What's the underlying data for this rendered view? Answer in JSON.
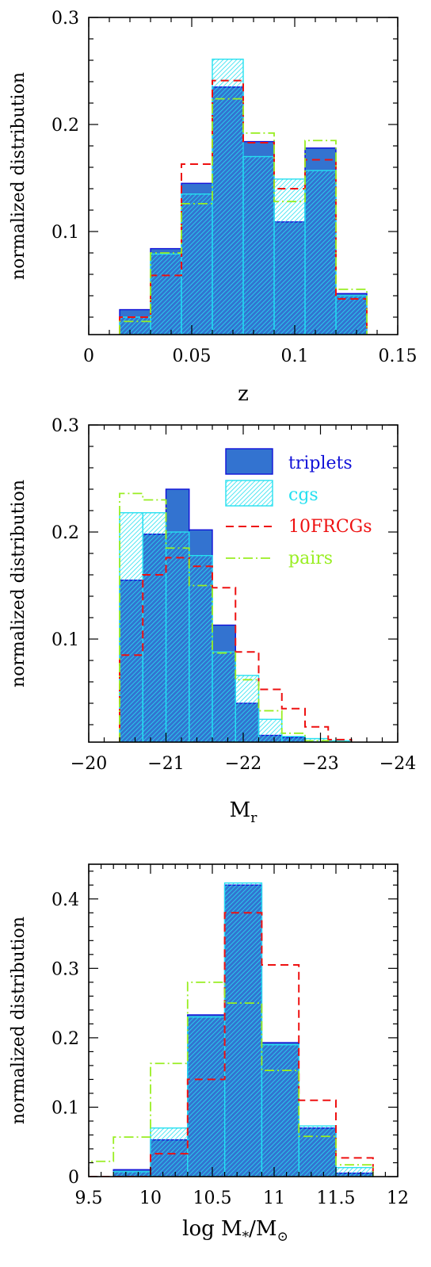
{
  "figure": {
    "colors": {
      "triplets_fill": "#3373d0",
      "triplets_edge": "#1010d8",
      "cgs": "#26e0f0",
      "frcgs": "#ee1111",
      "pairs": "#99ee22",
      "axis": "#000000",
      "background": "#ffffff"
    },
    "legend_panel": 1
  },
  "chart_data": [
    {
      "type": "bar",
      "xlabel": "z",
      "ylabel": "normalized distribution",
      "xlim": [
        0,
        0.15
      ],
      "ylim": [
        0.0037,
        0.3
      ],
      "xticks": [
        0,
        0.05,
        0.1,
        0.15
      ],
      "xtick_labels": [
        "0",
        "0.05",
        "0.1",
        "0.15"
      ],
      "yticks": [
        0.1,
        0.2,
        0.3
      ],
      "ytick_labels": [
        "0.1",
        "0.2",
        "0.3"
      ],
      "bin_edges": [
        0.015,
        0.03,
        0.045,
        0.06,
        0.075,
        0.09,
        0.105,
        0.12,
        0.135
      ],
      "series": [
        {
          "key": "triplets",
          "values": [
            0.027,
            0.084,
            0.145,
            0.235,
            0.184,
            0.109,
            0.178,
            0.042
          ]
        },
        {
          "key": "cgs",
          "values": [
            0.02,
            0.079,
            0.135,
            0.261,
            0.17,
            0.149,
            0.157,
            0.04
          ]
        },
        {
          "key": "frcgs",
          "values": [
            0.02,
            0.059,
            0.163,
            0.241,
            0.183,
            0.14,
            0.167,
            0.037
          ]
        },
        {
          "key": "pairs",
          "values": [
            0.016,
            0.08,
            0.126,
            0.224,
            0.192,
            0.128,
            0.185,
            0.046
          ]
        }
      ]
    },
    {
      "type": "bar",
      "xlabel": "M",
      "xlabel_sub": "r",
      "ylabel": "normalized distribution",
      "xlim": [
        -20,
        -24
      ],
      "ylim": [
        0.0037,
        0.3
      ],
      "xticks": [
        -20,
        -21,
        -22,
        -23,
        -24
      ],
      "xtick_labels": [
        "−20",
        "−21",
        "−22",
        "−23",
        "−24"
      ],
      "yticks": [
        0.1,
        0.2,
        0.3
      ],
      "ytick_labels": [
        "0.1",
        "0.2",
        "0.3"
      ],
      "bin_edges": [
        -20.4,
        -20.7,
        -21.0,
        -21.3,
        -21.6,
        -21.9,
        -22.2,
        -22.5,
        -22.8,
        -23.1,
        -23.4
      ],
      "series": [
        {
          "key": "triplets",
          "values": [
            0.155,
            0.198,
            0.24,
            0.202,
            0.113,
            0.04,
            0.01,
            0.008,
            0.004,
            0.001
          ]
        },
        {
          "key": "cgs",
          "values": [
            0.218,
            0.218,
            0.2,
            0.178,
            0.088,
            0.066,
            0.025,
            0.009,
            0.007,
            0.005
          ]
        },
        {
          "key": "frcgs",
          "values": [
            0.085,
            0.16,
            0.176,
            0.168,
            0.148,
            0.088,
            0.053,
            0.035,
            0.018,
            0.006
          ]
        },
        {
          "key": "pairs",
          "values": [
            0.236,
            0.23,
            0.185,
            0.15,
            0.087,
            0.062,
            0.033,
            0.012,
            0.005,
            0.002
          ]
        }
      ],
      "legend": [
        {
          "key": "triplets",
          "label": "triplets"
        },
        {
          "key": "cgs",
          "label": "cgs"
        },
        {
          "key": "frcgs",
          "label": "10FRCGs"
        },
        {
          "key": "pairs",
          "label": "pairs"
        }
      ]
    },
    {
      "type": "bar",
      "xlabel": "log M",
      "xlabel_sub": "*",
      "xlabel_mid": "/M",
      "xlabel_sub2": "⊙",
      "ylabel": "normalized distribution",
      "xlim": [
        9.5,
        12
      ],
      "ylim": [
        0,
        0.45
      ],
      "xticks": [
        9.5,
        10,
        10.5,
        11,
        11.5,
        12
      ],
      "xtick_labels": [
        "9.5",
        "10",
        "10.5",
        "11",
        "11.5",
        "12"
      ],
      "yticks": [
        0,
        0.1,
        0.2,
        0.3,
        0.4
      ],
      "ytick_labels": [
        "0",
        "0.1",
        "0.2",
        "0.3",
        "0.4"
      ],
      "bin_edges": [
        9.4,
        9.7,
        10.0,
        10.3,
        10.6,
        10.9,
        11.2,
        11.5,
        11.8
      ],
      "series": [
        {
          "key": "triplets",
          "values": [
            0.0,
            0.01,
            0.053,
            0.233,
            0.42,
            0.193,
            0.07,
            0.005
          ]
        },
        {
          "key": "cgs",
          "values": [
            0.0,
            0.007,
            0.07,
            0.23,
            0.423,
            0.19,
            0.073,
            0.013
          ]
        },
        {
          "key": "frcgs",
          "values": [
            0.0,
            0.0,
            0.033,
            0.14,
            0.38,
            0.305,
            0.11,
            0.027
          ]
        },
        {
          "key": "pairs",
          "values": [
            0.022,
            0.057,
            0.163,
            0.28,
            0.25,
            0.153,
            0.058,
            0.017
          ]
        }
      ]
    }
  ]
}
